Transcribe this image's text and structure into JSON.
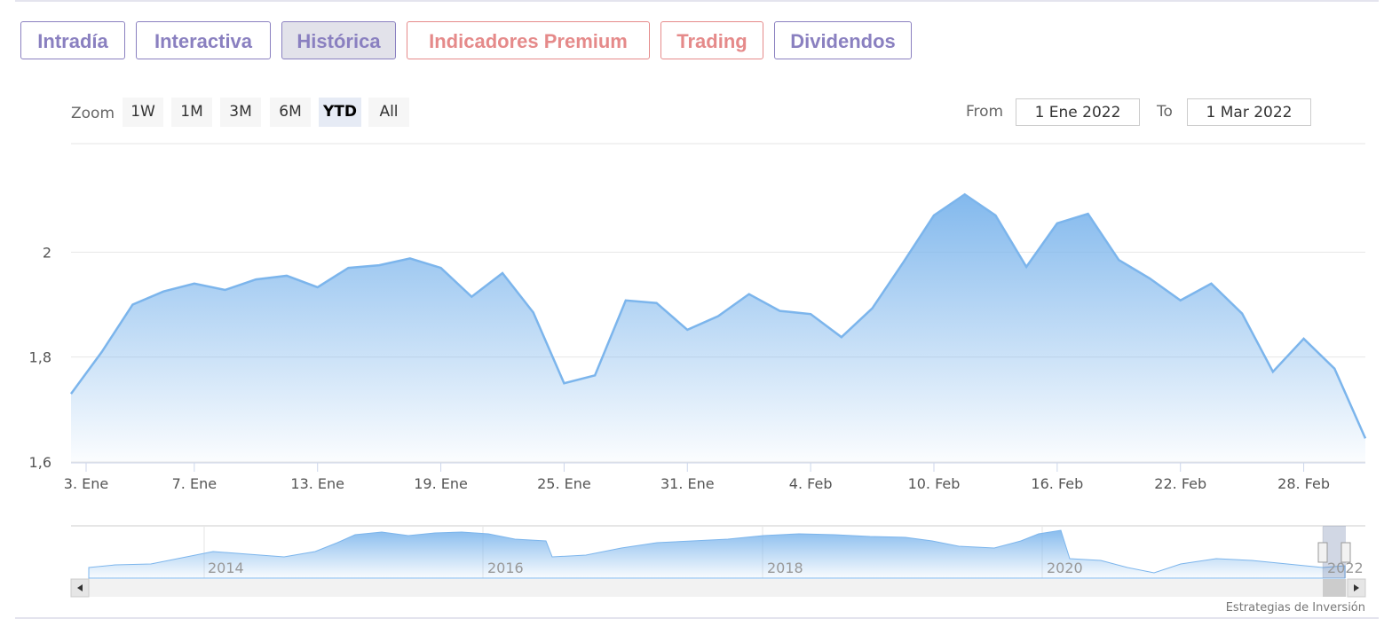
{
  "tabs": [
    "Intradía",
    "Interactiva",
    "Histórica",
    "Indicadores Premium",
    "Trading",
    "Dividendos"
  ],
  "zoom": {
    "label": "Zoom",
    "buttons": [
      "1W",
      "1M",
      "3M",
      "6M",
      "YTD",
      "All"
    ]
  },
  "range": {
    "from_label": "From",
    "from": "1 Ene 2022",
    "to_label": "To",
    "to": "1 Mar 2022"
  },
  "navigator": {
    "labels": [
      "2014",
      "2016",
      "2018",
      "2020",
      "2022"
    ]
  },
  "credit": "Estrategias de Inversión",
  "chart_data": {
    "type": "area",
    "color": "#7cb5ec",
    "categories": [
      "3. Ene",
      null,
      null,
      null,
      "7. Ene",
      null,
      null,
      null,
      "13. Ene",
      null,
      null,
      null,
      "19. Ene",
      null,
      null,
      null,
      "25. Ene",
      null,
      null,
      null,
      "31. Ene",
      null,
      null,
      null,
      "4. Feb",
      null,
      null,
      null,
      "10. Feb",
      null,
      null,
      null,
      "16. Feb",
      null,
      null,
      null,
      "22. Feb",
      null,
      null,
      null,
      "28. Feb",
      null,
      null
    ],
    "values": [
      1.73,
      1.81,
      1.9,
      1.925,
      1.94,
      1.928,
      1.948,
      1.955,
      1.933,
      1.97,
      1.975,
      1.988,
      1.97,
      1.915,
      1.96,
      1.885,
      1.75,
      1.765,
      1.908,
      1.903,
      1.852,
      1.878,
      1.92,
      1.888,
      1.882,
      1.838,
      1.893,
      1.98,
      2.07,
      2.11,
      2.07,
      1.972,
      2.055,
      2.073,
      1.985,
      1.95,
      1.908,
      1.94,
      1.883,
      1.772,
      1.835,
      1.778,
      1.645
    ],
    "ylim": [
      1.6,
      2.2
    ],
    "yticks": [
      {
        "value": 1.6,
        "label": "1,6"
      },
      {
        "value": 1.8,
        "label": "1,8"
      },
      2
    ],
    "grid": true
  }
}
